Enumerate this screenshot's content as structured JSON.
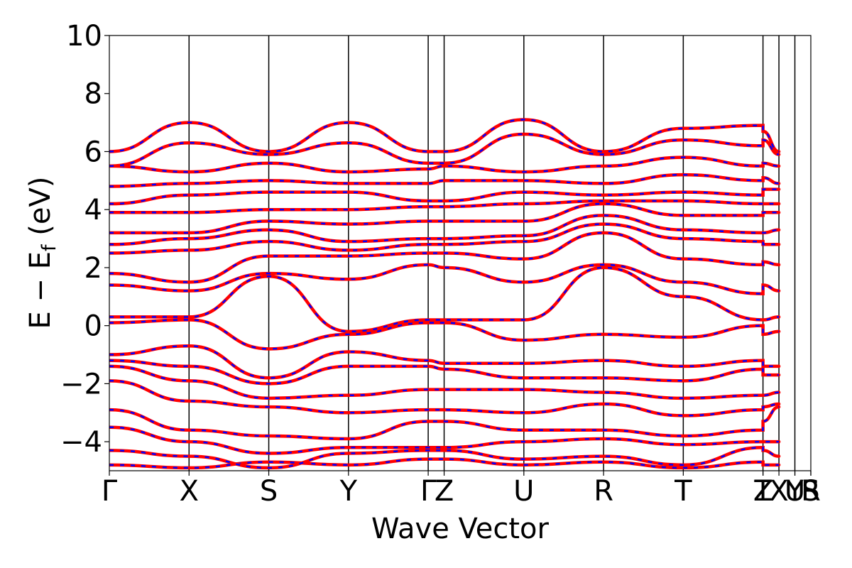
{
  "chart_data": {
    "type": "line",
    "title": "",
    "xlabel": "Wave Vector",
    "ylabel_main": "E − E",
    "ylabel_sub": "f",
    "ylabel_unit": " (eV)",
    "ylim": [
      -5,
      10
    ],
    "yticks": [
      -4,
      -2,
      0,
      2,
      4,
      6,
      8,
      10
    ],
    "ytick_labels": [
      "−4",
      "−2",
      "0",
      "2",
      "4",
      "6",
      "8",
      "10"
    ],
    "xlim": [
      0,
      8.8
    ],
    "kpoints": [
      {
        "label": "Γ",
        "pos": 0.0
      },
      {
        "label": "X",
        "pos": 1.0
      },
      {
        "label": "S",
        "pos": 2.0
      },
      {
        "label": "Y",
        "pos": 3.0
      },
      {
        "label": "Γ",
        "pos": 4.0
      },
      {
        "label": "Z",
        "pos": 4.2
      },
      {
        "label": "U",
        "pos": 5.2
      },
      {
        "label": "R",
        "pos": 6.2
      },
      {
        "label": "T",
        "pos": 7.2
      },
      {
        "label": "Z",
        "pos": 8.2
      },
      {
        "label": "T",
        "pos": 8.2
      },
      {
        "label": "X",
        "pos": 8.4
      },
      {
        "label": "Y",
        "pos": 8.6
      },
      {
        "label": "U",
        "pos": 8.6
      },
      {
        "label": "R",
        "pos": 8.8
      },
      {
        "label": "S",
        "pos": 8.8
      }
    ],
    "vlines": [
      1.0,
      2.0,
      3.0,
      4.0,
      4.2,
      5.2,
      6.2,
      7.2,
      8.2,
      8.4,
      8.6
    ],
    "series_styles": [
      {
        "color": "#ff0000",
        "style": "solid"
      },
      {
        "color": "#0000ff",
        "style": "dashed"
      }
    ],
    "bands": [
      [
        -4.8,
        -4.9,
        -4.7,
        -4.8,
        -4.6,
        -4.6,
        -4.8,
        -4.7,
        -4.9,
        -4.7,
        -4.8,
        -4.8
      ],
      [
        -4.3,
        -4.5,
        -4.9,
        -4.4,
        -4.3,
        -4.3,
        -4.6,
        -4.5,
        -4.8,
        -4.2,
        -4.3,
        -4.5
      ],
      [
        -3.5,
        -4.0,
        -4.4,
        -4.2,
        -4.2,
        -4.2,
        -4.0,
        -3.9,
        -4.1,
        -4.0,
        -4.0,
        -4.0
      ],
      [
        -2.9,
        -3.6,
        -3.8,
        -3.9,
        -3.3,
        -3.3,
        -3.6,
        -3.6,
        -3.8,
        -3.6,
        -3.3,
        -2.8
      ],
      [
        -1.9,
        -2.6,
        -2.8,
        -3.0,
        -2.9,
        -2.9,
        -3.0,
        -2.7,
        -3.1,
        -2.9,
        -2.8,
        -2.7
      ],
      [
        -1.4,
        -1.9,
        -2.5,
        -2.4,
        -2.2,
        -2.2,
        -2.2,
        -2.3,
        -2.5,
        -2.4,
        -2.4,
        -2.3
      ],
      [
        -1.2,
        -1.4,
        -2.0,
        -1.4,
        -1.4,
        -1.5,
        -1.8,
        -1.8,
        -1.9,
        -1.5,
        -1.7,
        -1.7
      ],
      [
        -1.0,
        -0.7,
        -1.8,
        -0.9,
        -1.2,
        -1.3,
        -1.3,
        -1.2,
        -1.4,
        -1.2,
        -1.4,
        -1.4
      ],
      [
        0.1,
        0.2,
        -0.8,
        -0.3,
        0.1,
        0.1,
        -0.5,
        -0.3,
        -0.4,
        0.0,
        -0.3,
        -0.2
      ],
      [
        0.3,
        0.3,
        1.7,
        -0.2,
        0.2,
        0.2,
        0.2,
        2.0,
        1.0,
        0.2,
        0.2,
        0.3
      ],
      [
        1.4,
        1.2,
        1.8,
        1.6,
        2.1,
        2.0,
        1.5,
        2.1,
        1.5,
        1.1,
        1.4,
        1.2
      ],
      [
        1.8,
        1.5,
        2.4,
        2.4,
        2.5,
        2.5,
        2.3,
        3.2,
        2.3,
        2.1,
        2.2,
        2.1
      ],
      [
        2.5,
        2.6,
        2.9,
        2.6,
        2.8,
        2.8,
        2.9,
        3.5,
        3.0,
        2.9,
        2.8,
        2.8
      ],
      [
        2.8,
        3.0,
        3.3,
        2.9,
        3.0,
        3.0,
        3.1,
        3.8,
        3.3,
        3.2,
        3.2,
        3.3
      ],
      [
        3.2,
        3.2,
        3.6,
        3.5,
        3.6,
        3.6,
        3.6,
        4.2,
        3.8,
        3.8,
        3.9,
        3.9
      ],
      [
        3.9,
        3.9,
        4.0,
        4.0,
        4.1,
        4.1,
        4.2,
        4.3,
        4.3,
        4.2,
        4.2,
        4.2
      ],
      [
        4.2,
        4.5,
        4.6,
        4.6,
        4.3,
        4.3,
        4.6,
        4.5,
        4.6,
        4.5,
        4.7,
        4.7
      ],
      [
        4.8,
        4.9,
        5.0,
        4.9,
        4.9,
        5.0,
        5.0,
        4.9,
        5.2,
        5.0,
        5.1,
        4.9
      ],
      [
        5.5,
        5.3,
        5.6,
        5.3,
        5.4,
        5.5,
        5.3,
        5.5,
        5.8,
        5.5,
        5.6,
        5.5
      ],
      [
        5.5,
        6.3,
        5.9,
        6.3,
        5.6,
        5.6,
        6.6,
        5.9,
        6.4,
        6.2,
        6.4,
        5.9
      ],
      [
        6.0,
        7.0,
        6.0,
        7.0,
        6.0,
        6.0,
        7.1,
        6.0,
        6.8,
        6.9,
        6.7,
        6.0
      ]
    ]
  }
}
